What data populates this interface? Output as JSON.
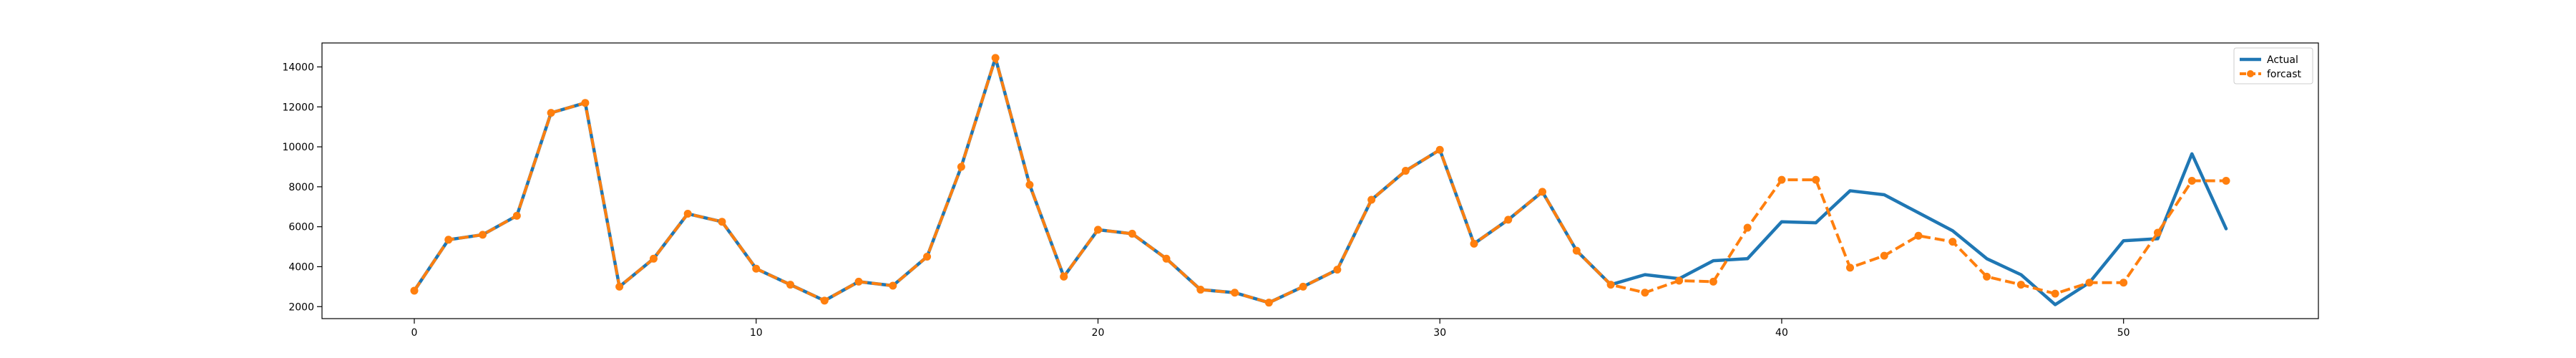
{
  "chart_data": {
    "type": "line",
    "title": "",
    "xlabel": "",
    "ylabel": "",
    "xlim": [
      -2.7,
      55.7
    ],
    "ylim": [
      1400,
      15200
    ],
    "x_ticks": [
      0,
      10,
      20,
      30,
      40,
      50
    ],
    "y_ticks": [
      2000,
      4000,
      6000,
      8000,
      10000,
      12000,
      14000
    ],
    "grid": false,
    "legend_position": "upper right",
    "series": [
      {
        "name": "Actual",
        "color": "#1f77b4",
        "style": "solid",
        "marker": "none",
        "x": [
          0,
          1,
          2,
          3,
          4,
          5,
          6,
          7,
          8,
          9,
          10,
          11,
          12,
          13,
          14,
          15,
          16,
          17,
          18,
          19,
          20,
          21,
          22,
          23,
          24,
          25,
          26,
          27,
          28,
          29,
          30,
          31,
          32,
          33,
          34,
          35,
          36,
          37,
          38,
          39,
          40,
          41,
          42,
          43,
          44,
          45,
          46,
          47,
          48,
          49,
          50,
          51,
          52,
          53
        ],
        "values": [
          2800,
          5350,
          5600,
          6550,
          11700,
          12200,
          3000,
          4400,
          6650,
          6250,
          3900,
          3100,
          2300,
          3250,
          3050,
          4500,
          9000,
          14450,
          8100,
          3500,
          5850,
          5650,
          4400,
          2850,
          2700,
          2200,
          3000,
          3850,
          7350,
          8800,
          9850,
          5150,
          6350,
          7750,
          4800,
          3100,
          3600,
          3400,
          4300,
          4400,
          6250,
          6200,
          7800,
          7600,
          6700,
          5800,
          4400,
          3600,
          2100,
          3200,
          5300,
          5400,
          9650,
          5900
        ]
      },
      {
        "name": "forcast",
        "color": "#ff7f0e",
        "style": "dashed",
        "marker": "circle",
        "x": [
          0,
          1,
          2,
          3,
          4,
          5,
          6,
          7,
          8,
          9,
          10,
          11,
          12,
          13,
          14,
          15,
          16,
          17,
          18,
          19,
          20,
          21,
          22,
          23,
          24,
          25,
          26,
          27,
          28,
          29,
          30,
          31,
          32,
          33,
          34,
          35,
          36,
          37,
          38,
          39,
          40,
          41,
          42,
          43,
          44,
          45,
          46,
          47,
          48,
          49,
          50,
          51,
          52,
          53
        ],
        "values": [
          2800,
          5350,
          5600,
          6550,
          11700,
          12200,
          3000,
          4400,
          6650,
          6250,
          3900,
          3100,
          2300,
          3250,
          3050,
          4500,
          9000,
          14450,
          8100,
          3500,
          5850,
          5650,
          4400,
          2850,
          2700,
          2200,
          3000,
          3850,
          7350,
          8800,
          9850,
          5150,
          6350,
          7750,
          4800,
          3100,
          2700,
          3300,
          3250,
          5950,
          8350,
          8350,
          3950,
          4550,
          5550,
          5250,
          3500,
          3100,
          2650,
          3200,
          3200,
          5700,
          8300,
          8300
        ]
      }
    ]
  }
}
